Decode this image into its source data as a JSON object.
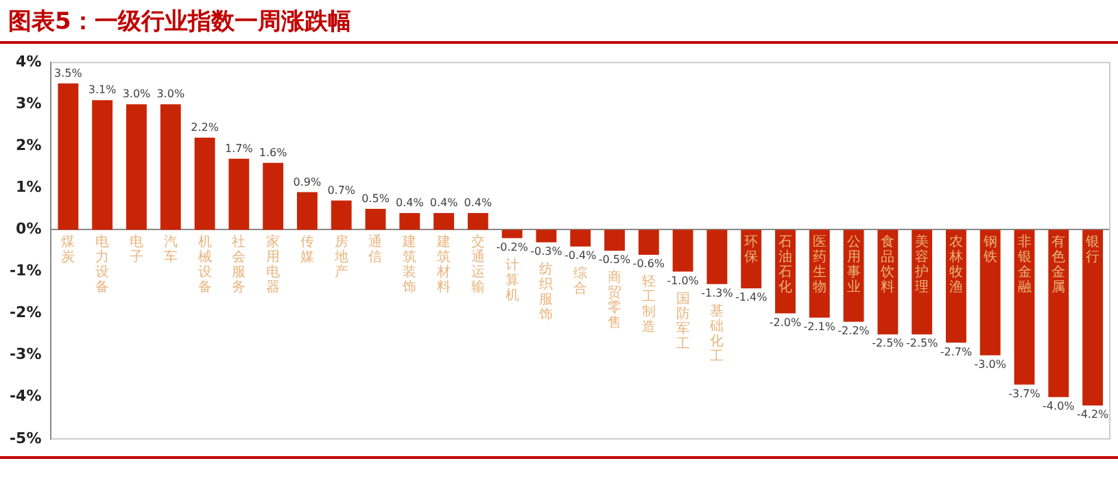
{
  "chart_data": {
    "type": "bar",
    "title": "图表5：一级行业指数一周涨跌幅",
    "categories": [
      "煤炭",
      "电力设备",
      "电子",
      "汽车",
      "机械设备",
      "社会服务",
      "家用电器",
      "传媒",
      "房地产",
      "通信",
      "建筑装饰",
      "建筑材料",
      "交通运输",
      "计算机",
      "纺织服饰",
      "综合",
      "商贸零售",
      "轻工制造",
      "国防军工",
      "基础化工",
      "环保",
      "石油石化",
      "医药生物",
      "公用事业",
      "食品饮料",
      "美容护理",
      "农林牧渔",
      "钢铁",
      "非银金融",
      "有色金属",
      "银行"
    ],
    "values": [
      3.5,
      3.1,
      3.0,
      3.0,
      2.2,
      1.7,
      1.6,
      0.9,
      0.7,
      0.5,
      0.4,
      0.4,
      0.4,
      -0.2,
      -0.3,
      -0.4,
      -0.5,
      -0.6,
      -1.0,
      -1.3,
      -1.4,
      -2.0,
      -2.1,
      -2.2,
      -2.5,
      -2.5,
      -2.7,
      -3.0,
      -3.7,
      -4.0,
      -4.2
    ],
    "value_labels": [
      "3.5%",
      "3.1%",
      "3.0%",
      "3.0%",
      "2.2%",
      "1.7%",
      "1.6%",
      "0.9%",
      "0.7%",
      "0.5%",
      "0.4%",
      "0.4%",
      "0.4%",
      "-0.2%",
      "-0.3%",
      "-0.4%",
      "-0.5%",
      "-0.6%",
      "-1.0%",
      "-1.3%",
      "-1.4%",
      "-2.0%",
      "-2.1%",
      "-2.2%",
      "-2.5%",
      "-2.5%",
      "-2.7%",
      "-3.0%",
      "-3.7%",
      "-4.0%",
      "-4.2%"
    ],
    "color": "#c82506",
    "ylim": [
      -5,
      4
    ],
    "yticks": [
      {
        "value": -5,
        "label": "-5%"
      },
      {
        "value": -4,
        "label": "-4%"
      },
      {
        "value": -3,
        "label": "-3%"
      },
      {
        "value": -2,
        "label": "-2%"
      },
      {
        "value": -1,
        "label": "-1%"
      },
      {
        "value": 0,
        "label": "0%"
      },
      {
        "value": 1,
        "label": "1%"
      },
      {
        "value": 2,
        "label": "2%"
      },
      {
        "value": 3,
        "label": "3%"
      },
      {
        "value": 4,
        "label": "4%"
      }
    ],
    "grid": false,
    "legend": false
  }
}
